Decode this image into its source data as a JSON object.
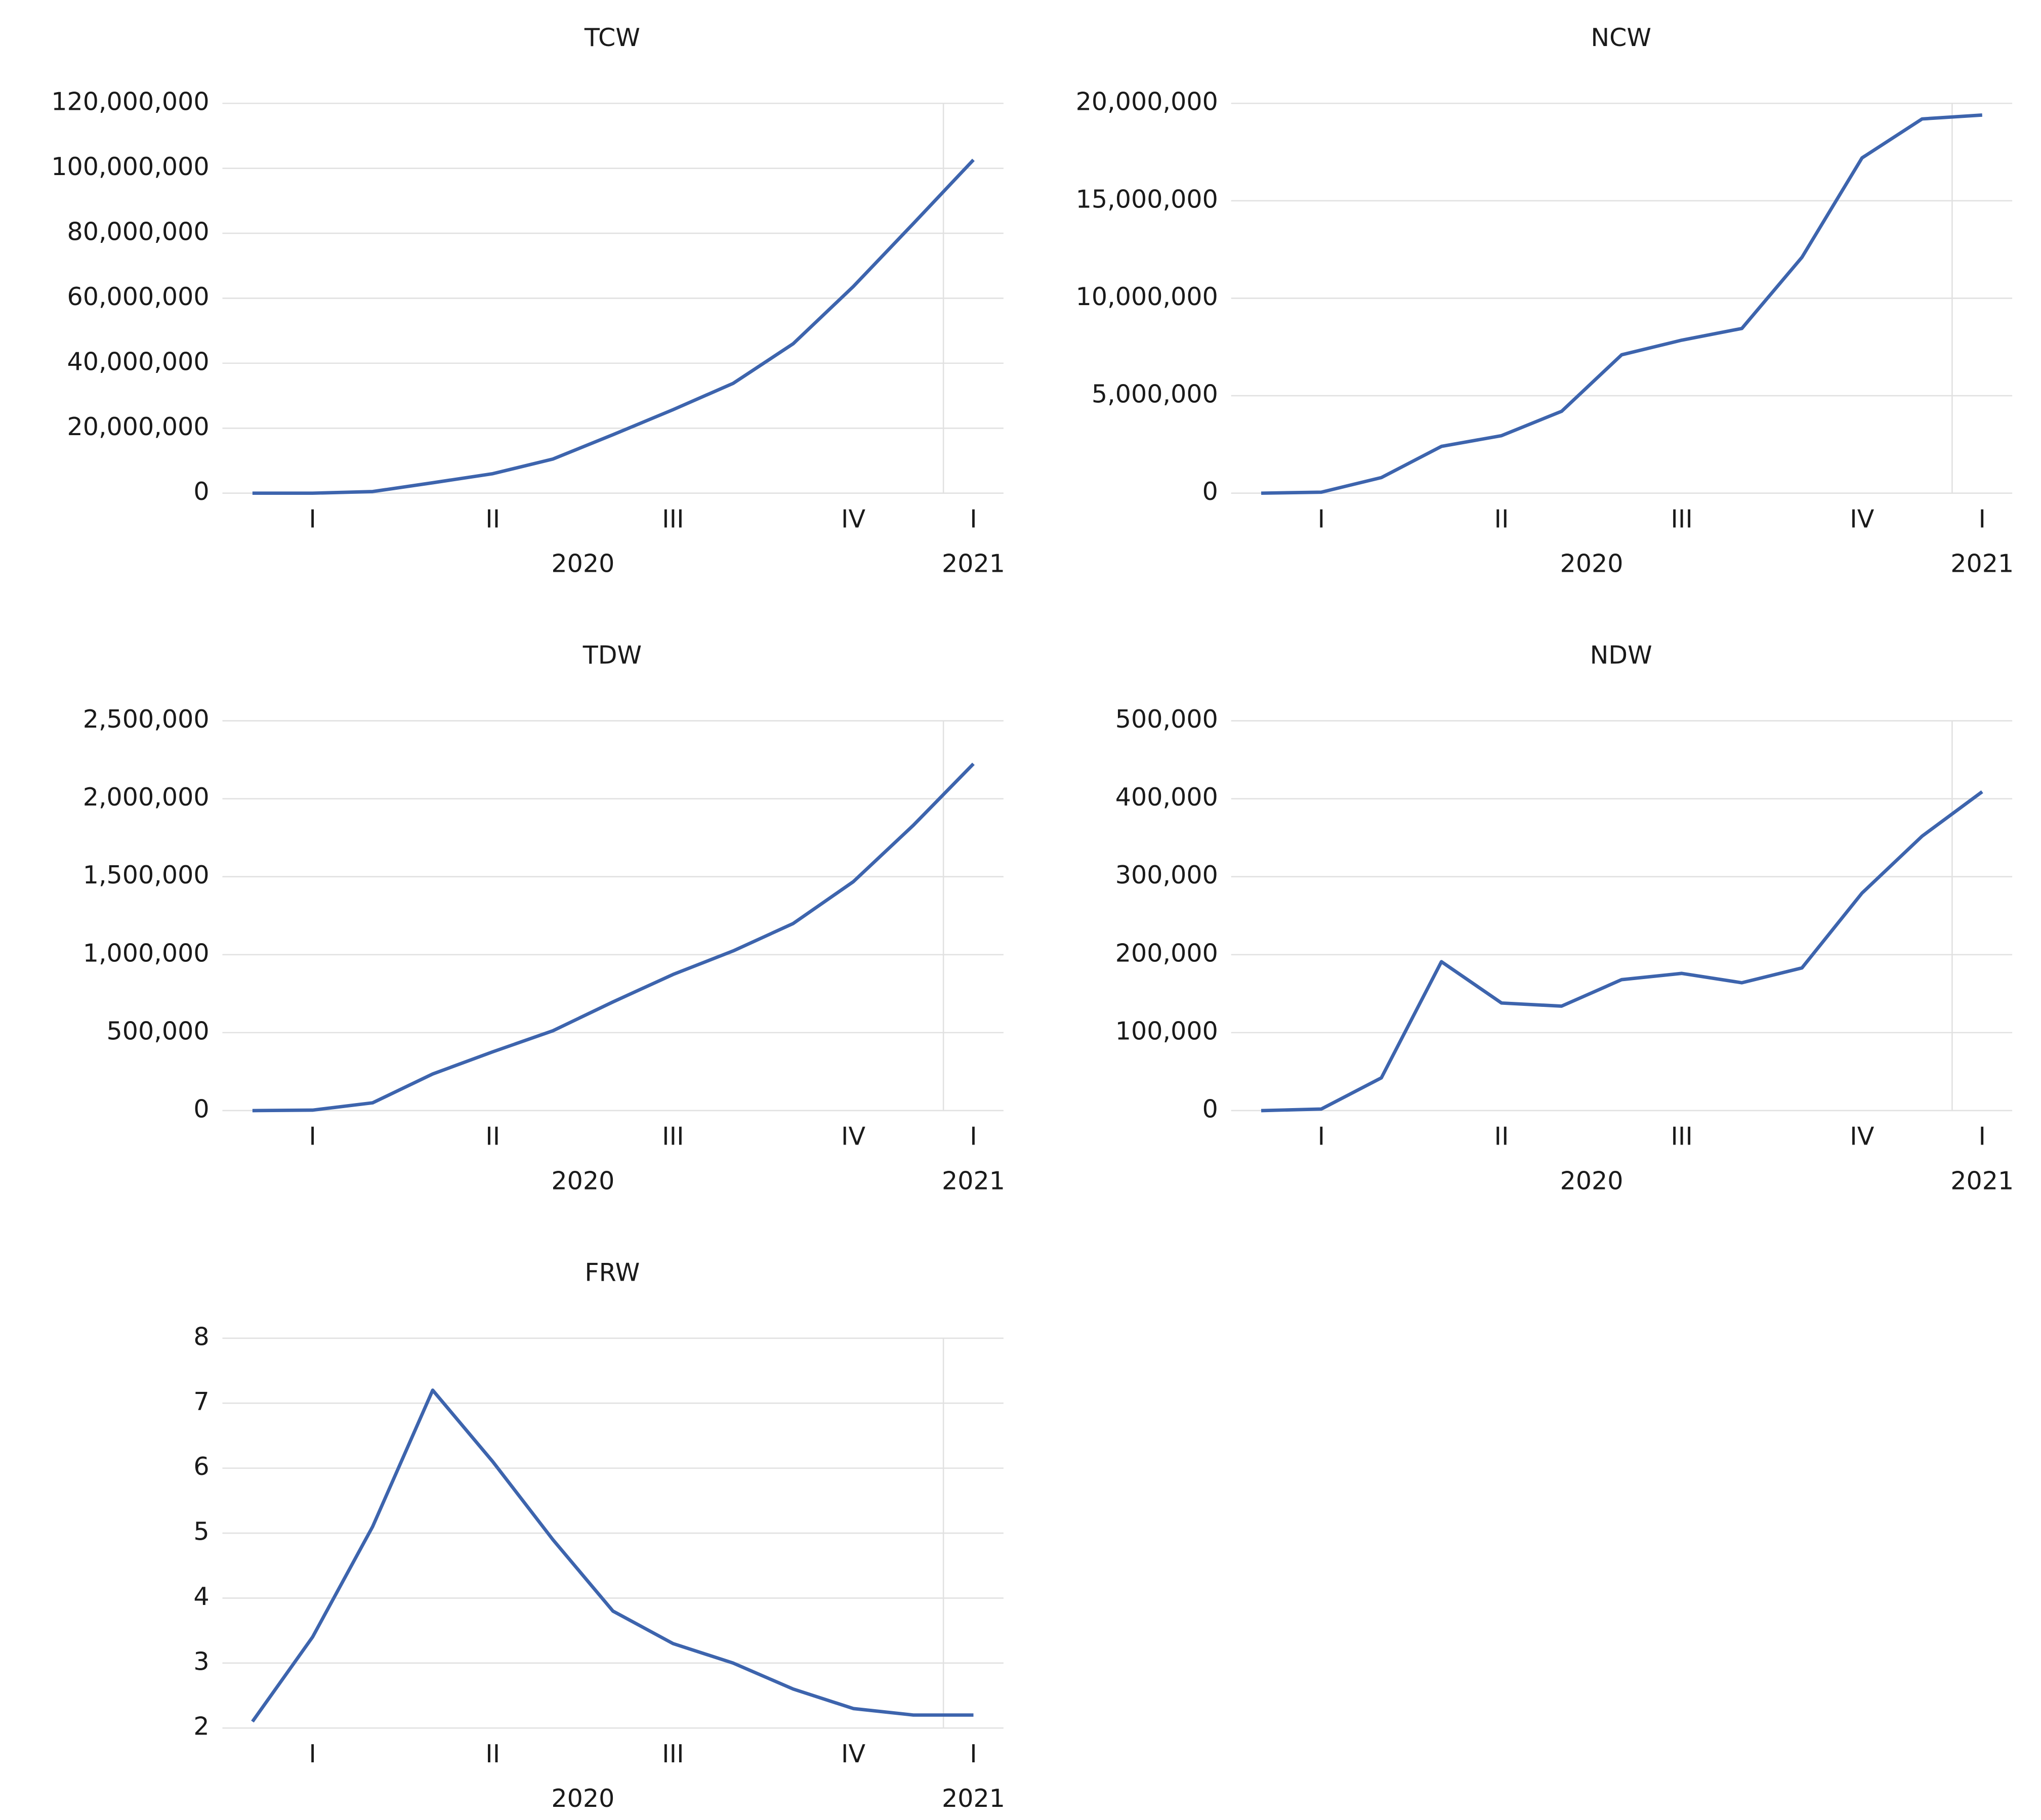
{
  "chart_data": [
    {
      "type": "line",
      "title": "TCW",
      "categories": [
        null,
        null,
        null,
        null,
        null,
        null,
        null,
        null,
        null,
        null,
        null,
        null,
        null
      ],
      "x_groups": [
        {
          "label": "2020",
          "quarters": [
            "I",
            "II",
            "III",
            "IV"
          ]
        },
        {
          "label": "2021",
          "quarters": [
            "I"
          ]
        }
      ],
      "series": [
        {
          "color": "#3d64ad",
          "values": [
            0,
            0,
            500000,
            3200000,
            6000000,
            10500000,
            18000000,
            25700000,
            33800000,
            46000000,
            63600000,
            83000000,
            102600000
          ]
        }
      ],
      "ylim": [
        0,
        120000000
      ],
      "yticks": [
        0,
        {
          "value": 20000000,
          "label": "20,000,000"
        },
        {
          "value": 40000000,
          "label": "40,000,000"
        },
        {
          "value": 60000000,
          "label": "60,000,000"
        },
        {
          "value": 80000000,
          "label": "80,000,000"
        },
        {
          "value": 100000000,
          "label": "100,000,000"
        },
        {
          "value": 120000000,
          "label": "120,000,000"
        }
      ],
      "grid": true
    },
    {
      "type": "line",
      "title": "NCW",
      "categories": [
        null,
        null,
        null,
        null,
        null,
        null,
        null,
        null,
        null,
        null,
        null,
        null,
        null
      ],
      "x_groups": [
        {
          "label": "2020",
          "quarters": [
            "I",
            "II",
            "III",
            "IV"
          ]
        },
        {
          "label": "2021",
          "quarters": [
            "I"
          ]
        }
      ],
      "series": [
        {
          "color": "#3d64ad",
          "values": [
            0,
            50000,
            800000,
            2400000,
            2950000,
            4200000,
            7100000,
            7850000,
            8450000,
            12100000,
            17200000,
            19200000,
            19400000
          ]
        }
      ],
      "ylim": [
        0,
        20000000
      ],
      "yticks": [
        0,
        {
          "value": 5000000,
          "label": "5,000,000"
        },
        {
          "value": 10000000,
          "label": "10,000,000"
        },
        {
          "value": 15000000,
          "label": "15,000,000"
        },
        {
          "value": 20000000,
          "label": "20,000,000"
        }
      ],
      "grid": true
    },
    {
      "type": "line",
      "title": "TDW",
      "categories": [
        null,
        null,
        null,
        null,
        null,
        null,
        null,
        null,
        null,
        null,
        null,
        null,
        null
      ],
      "x_groups": [
        {
          "label": "2020",
          "quarters": [
            "I",
            "II",
            "III",
            "IV"
          ]
        },
        {
          "label": "2021",
          "quarters": [
            "I"
          ]
        }
      ],
      "series": [
        {
          "color": "#3d64ad",
          "values": [
            0,
            3000,
            50000,
            235000,
            377000,
            512000,
            697000,
            873000,
            1024000,
            1200000,
            1468000,
            1830000,
            2224000
          ]
        }
      ],
      "ylim": [
        0,
        2500000
      ],
      "yticks": [
        0,
        {
          "value": 500000,
          "label": "500,000"
        },
        {
          "value": 1000000,
          "label": "1,000,000"
        },
        {
          "value": 1500000,
          "label": "1,500,000"
        },
        {
          "value": 2000000,
          "label": "2,000,000"
        },
        {
          "value": 2500000,
          "label": "2,500,000"
        }
      ],
      "grid": true
    },
    {
      "type": "line",
      "title": "NDW",
      "categories": [
        null,
        null,
        null,
        null,
        null,
        null,
        null,
        null,
        null,
        null,
        null,
        null,
        null
      ],
      "x_groups": [
        {
          "label": "2020",
          "quarters": [
            "I",
            "II",
            "III",
            "IV"
          ]
        },
        {
          "label": "2021",
          "quarters": [
            "I"
          ]
        }
      ],
      "series": [
        {
          "color": "#3d64ad",
          "values": [
            0,
            2000,
            42000,
            191000,
            138000,
            134000,
            168000,
            176000,
            164000,
            183000,
            279000,
            352000,
            409000
          ]
        }
      ],
      "ylim": [
        0,
        500000
      ],
      "yticks": [
        0,
        {
          "value": 100000,
          "label": "100,000"
        },
        {
          "value": 200000,
          "label": "200,000"
        },
        {
          "value": 300000,
          "label": "300,000"
        },
        {
          "value": 400000,
          "label": "400,000"
        },
        {
          "value": 500000,
          "label": "500,000"
        }
      ],
      "grid": true
    },
    {
      "type": "line",
      "title": "FRW",
      "categories": [
        null,
        null,
        null,
        null,
        null,
        null,
        null,
        null,
        null,
        null,
        null,
        null,
        null
      ],
      "x_groups": [
        {
          "label": "2020",
          "quarters": [
            "I",
            "II",
            "III",
            "IV"
          ]
        },
        {
          "label": "2021",
          "quarters": [
            "I"
          ]
        }
      ],
      "series": [
        {
          "color": "#3d64ad",
          "values": [
            2.1,
            3.4,
            5.1,
            7.2,
            6.1,
            4.9,
            3.8,
            3.3,
            3.0,
            2.6,
            2.3,
            2.2,
            2.2
          ]
        }
      ],
      "ylim": [
        2,
        8
      ],
      "yticks": [
        2,
        3,
        4,
        5,
        6,
        7,
        8
      ],
      "grid": true
    }
  ]
}
